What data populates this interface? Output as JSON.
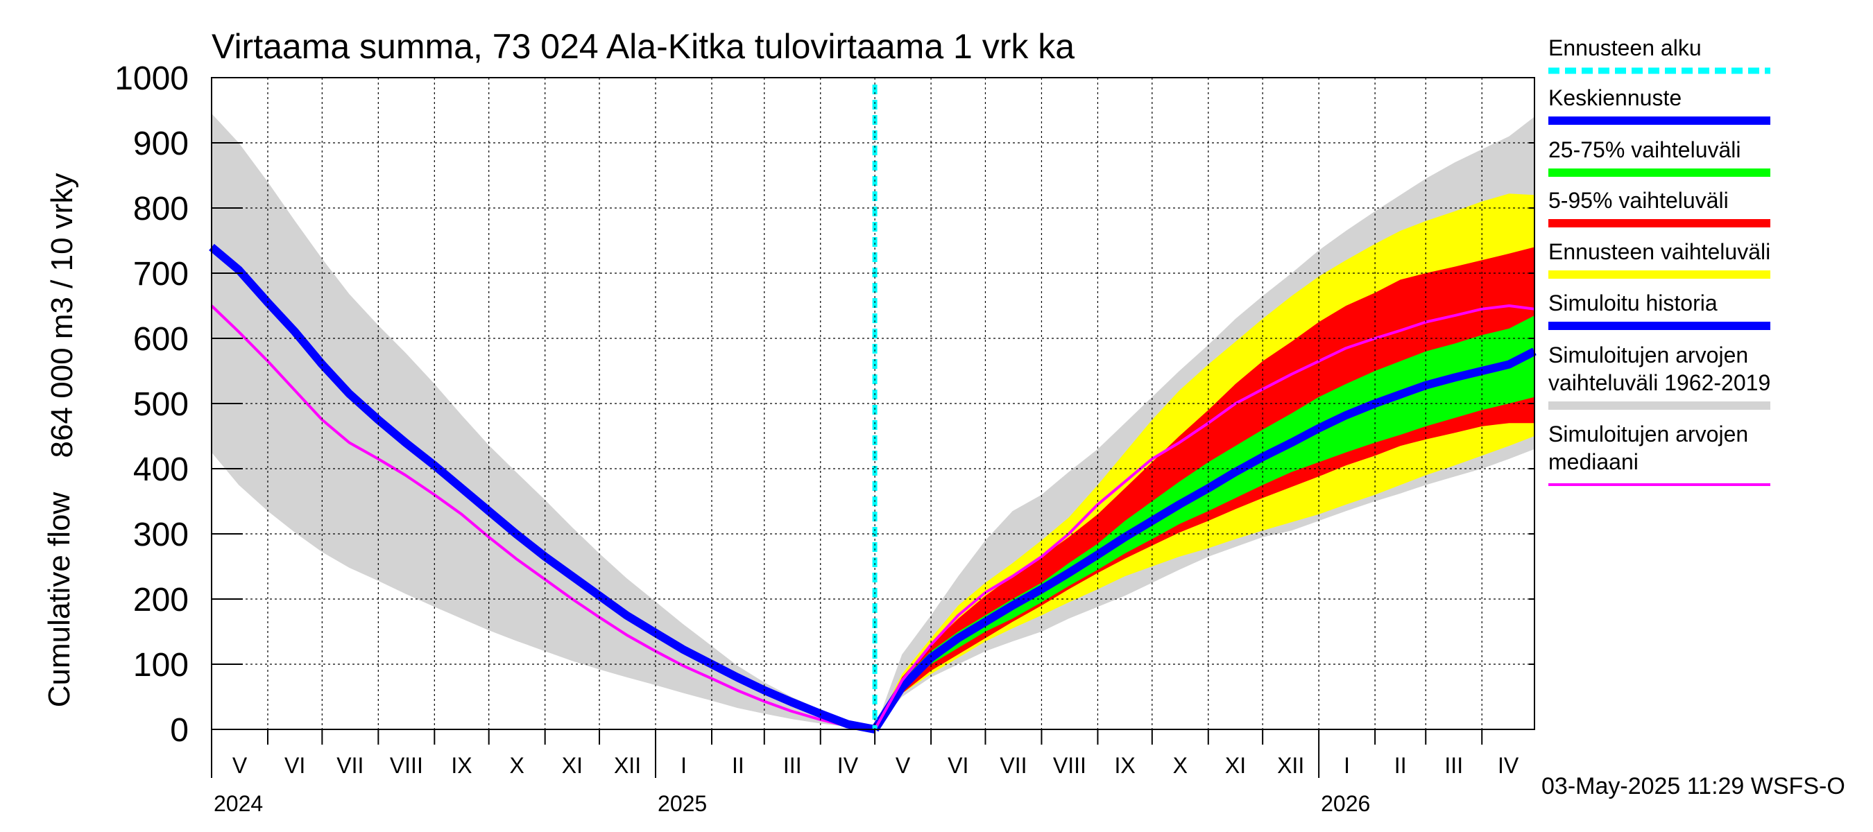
{
  "chart_data": {
    "type": "area",
    "title": "Virtaama summa, 73 024 Ala-Kitka tulovirtaama 1 vrk ka",
    "ylabel_line1": "864 000 m3 / 10 vrky",
    "ylabel_line2": "Cumulative flow",
    "ylim": [
      0,
      1000
    ],
    "yticks": [
      0,
      100,
      200,
      300,
      400,
      500,
      600,
      700,
      800,
      900,
      1000
    ],
    "xlim_days": [
      0,
      730
    ],
    "forecast_start_day": 366,
    "months": [
      {
        "label": "V",
        "start": 0,
        "end": 31
      },
      {
        "label": "VI",
        "start": 31,
        "end": 61
      },
      {
        "label": "VII",
        "start": 61,
        "end": 92
      },
      {
        "label": "VIII",
        "start": 92,
        "end": 123
      },
      {
        "label": "IX",
        "start": 123,
        "end": 153
      },
      {
        "label": "X",
        "start": 153,
        "end": 184
      },
      {
        "label": "XI",
        "start": 184,
        "end": 214
      },
      {
        "label": "XII",
        "start": 214,
        "end": 245
      },
      {
        "label": "I",
        "start": 245,
        "end": 276
      },
      {
        "label": "II",
        "start": 276,
        "end": 305
      },
      {
        "label": "III",
        "start": 305,
        "end": 336
      },
      {
        "label": "IV",
        "start": 336,
        "end": 366
      },
      {
        "label": "V",
        "start": 366,
        "end": 397
      },
      {
        "label": "VI",
        "start": 397,
        "end": 427
      },
      {
        "label": "VII",
        "start": 427,
        "end": 458
      },
      {
        "label": "VIII",
        "start": 458,
        "end": 489
      },
      {
        "label": "IX",
        "start": 489,
        "end": 519
      },
      {
        "label": "X",
        "start": 519,
        "end": 550
      },
      {
        "label": "XI",
        "start": 550,
        "end": 580
      },
      {
        "label": "XII",
        "start": 580,
        "end": 611
      },
      {
        "label": "I",
        "start": 611,
        "end": 642
      },
      {
        "label": "II",
        "start": 642,
        "end": 670
      },
      {
        "label": "III",
        "start": 670,
        "end": 701
      },
      {
        "label": "IV",
        "start": 701,
        "end": 730
      }
    ],
    "years": [
      {
        "label": "2024",
        "day": 0
      },
      {
        "label": "2025",
        "day": 245
      },
      {
        "label": "2026",
        "day": 611
      }
    ],
    "x_days": [
      0,
      15,
      31,
      46,
      61,
      76,
      92,
      107,
      123,
      138,
      153,
      168,
      184,
      199,
      214,
      229,
      245,
      260,
      276,
      290,
      305,
      320,
      336,
      351,
      366
    ],
    "historic_range": {
      "upper": [
        945,
        900,
        840,
        780,
        722,
        668,
        620,
        578,
        530,
        482,
        436,
        395,
        352,
        310,
        270,
        232,
        196,
        162,
        128,
        98,
        72,
        50,
        30,
        14,
        0
      ],
      "lower": [
        425,
        375,
        335,
        302,
        272,
        248,
        228,
        208,
        188,
        170,
        152,
        136,
        120,
        105,
        92,
        80,
        68,
        56,
        44,
        33,
        24,
        16,
        9,
        4,
        0
      ]
    },
    "simulated_history": [
      740,
      705,
      655,
      610,
      560,
      515,
      475,
      440,
      405,
      370,
      335,
      300,
      265,
      235,
      205,
      175,
      148,
      123,
      100,
      80,
      60,
      42,
      24,
      8,
      0
    ],
    "historic_median": [
      650,
      610,
      565,
      520,
      475,
      440,
      415,
      390,
      360,
      330,
      295,
      262,
      230,
      200,
      172,
      145,
      120,
      98,
      78,
      60,
      43,
      28,
      15,
      5,
      0
    ],
    "forecast_days": [
      366,
      381,
      397,
      412,
      427,
      442,
      458,
      473,
      489,
      504,
      519,
      534,
      550,
      565,
      580,
      596,
      611,
      626,
      642,
      656,
      670,
      686,
      701,
      716,
      730
    ],
    "range_sim_1962_2019": {
      "upper": [
        0,
        115,
        175,
        235,
        290,
        335,
        360,
        395,
        430,
        470,
        510,
        550,
        590,
        630,
        665,
        700,
        735,
        765,
        795,
        820,
        845,
        870,
        890,
        910,
        940
      ],
      "lower": [
        0,
        50,
        80,
        100,
        120,
        135,
        150,
        170,
        188,
        205,
        225,
        245,
        265,
        280,
        295,
        305,
        320,
        335,
        350,
        362,
        375,
        388,
        400,
        415,
        430
      ]
    },
    "forecast_range": {
      "upper": [
        0,
        85,
        140,
        190,
        225,
        255,
        290,
        325,
        375,
        425,
        475,
        520,
        560,
        595,
        630,
        665,
        695,
        720,
        745,
        765,
        780,
        795,
        810,
        822,
        820
      ],
      "lower": [
        0,
        55,
        85,
        110,
        135,
        155,
        175,
        195,
        215,
        235,
        250,
        265,
        278,
        292,
        305,
        318,
        330,
        345,
        360,
        375,
        390,
        405,
        420,
        435,
        450
      ]
    },
    "range_5_95": {
      "upper": [
        0,
        80,
        130,
        170,
        205,
        235,
        265,
        295,
        330,
        370,
        410,
        450,
        490,
        530,
        565,
        595,
        625,
        650,
        670,
        690,
        700,
        710,
        720,
        730,
        740
      ],
      "lower": [
        0,
        55,
        90,
        115,
        140,
        165,
        190,
        215,
        240,
        262,
        282,
        302,
        320,
        338,
        355,
        372,
        388,
        405,
        420,
        435,
        445,
        455,
        465,
        470,
        470
      ]
    },
    "range_25_75": {
      "upper": [
        0,
        75,
        120,
        150,
        175,
        200,
        225,
        255,
        285,
        320,
        350,
        380,
        410,
        435,
        460,
        485,
        510,
        530,
        550,
        565,
        580,
        592,
        605,
        615,
        635
      ],
      "lower": [
        0,
        62,
        100,
        125,
        150,
        170,
        195,
        220,
        245,
        270,
        292,
        315,
        335,
        355,
        375,
        395,
        410,
        425,
        440,
        452,
        465,
        478,
        490,
        500,
        510
      ]
    },
    "forecast_mean": [
      0,
      65,
      110,
      140,
      165,
      190,
      215,
      240,
      268,
      295,
      320,
      345,
      370,
      395,
      418,
      440,
      462,
      482,
      500,
      514,
      528,
      540,
      550,
      560,
      580
    ],
    "forecast_median": [
      0,
      75,
      130,
      175,
      210,
      235,
      265,
      300,
      345,
      380,
      415,
      440,
      470,
      500,
      522,
      545,
      565,
      585,
      600,
      612,
      625,
      635,
      645,
      650,
      645
    ]
  },
  "legend": {
    "items": [
      {
        "label": "Ennusteen alku",
        "color": "#00ffff",
        "style": "dash"
      },
      {
        "label": "Keskiennuste",
        "color": "#0000ff",
        "style": "line"
      },
      {
        "label": "25-75% vaihteluväli",
        "color": "#00ff00",
        "style": "line"
      },
      {
        "label": "5-95% vaihteluväli",
        "color": "#ff0000",
        "style": "line"
      },
      {
        "label": "Ennusteen vaihteluväli",
        "color": "#ffff00",
        "style": "line"
      },
      {
        "label": "Simuloitu historia",
        "color": "#0000ff",
        "style": "line"
      },
      {
        "label": "Simuloitujen arvojen",
        "label2": "vaihteluväli 1962-2019",
        "color": "#d3d3d3",
        "style": "line"
      },
      {
        "label": "Simuloitujen arvojen",
        "label2": "mediaani",
        "color": "#ff00ff",
        "style": "thin"
      }
    ]
  },
  "footer": {
    "timestamp": "03-May-2025 11:29 WSFS-O"
  },
  "colors": {
    "historic_range": "#d3d3d3",
    "forecast_range": "#ffff00",
    "range_5_95": "#ff0000",
    "range_25_75": "#00ff00",
    "mean": "#0000ff",
    "median": "#ff00ff",
    "forecast_start": "#00ffff"
  }
}
